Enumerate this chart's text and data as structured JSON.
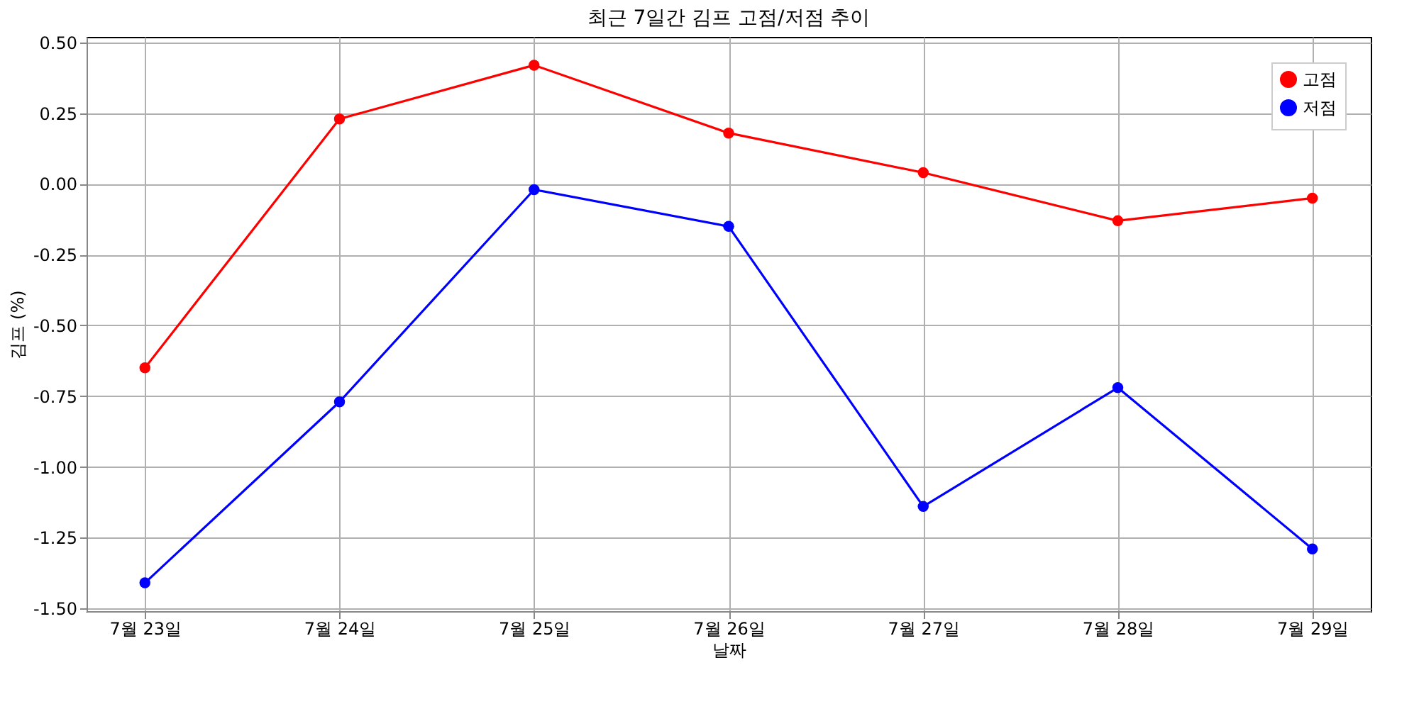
{
  "chart_data": {
    "type": "line",
    "title": "최근 7일간 김프 고점/저점 추이",
    "xlabel": "날짜",
    "ylabel": "김프 (%)",
    "categories": [
      "7월 23일",
      "7월 24일",
      "7월 25일",
      "7월 26일",
      "7월 27일",
      "7월 28일",
      "7월 29일"
    ],
    "series": [
      {
        "name": "고점",
        "color": "#ff0000",
        "values": [
          -0.65,
          0.23,
          0.42,
          0.18,
          0.04,
          -0.13,
          -0.05
        ]
      },
      {
        "name": "저점",
        "color": "#0000ff",
        "values": [
          -1.41,
          -0.77,
          -0.02,
          -0.15,
          -1.14,
          -0.72,
          -1.29
        ]
      }
    ],
    "ylim": [
      -1.51,
      0.52
    ],
    "yticks": [
      {
        "value": -1.5,
        "label": "-1.50"
      },
      {
        "value": -1.25,
        "label": "-1.25"
      },
      {
        "value": -1.0,
        "label": "-1.00"
      },
      {
        "value": -0.75,
        "label": "-0.75"
      },
      {
        "value": -0.5,
        "label": "-0.50"
      },
      {
        "value": -0.25,
        "label": "-0.25"
      },
      {
        "value": 0,
        "label": "0.00"
      },
      {
        "value": 0.25,
        "label": "0.25"
      },
      {
        "value": 0.5,
        "label": "0.50"
      }
    ],
    "grid": true,
    "legend": "top right",
    "marker": "circle",
    "line_style": "solid"
  }
}
